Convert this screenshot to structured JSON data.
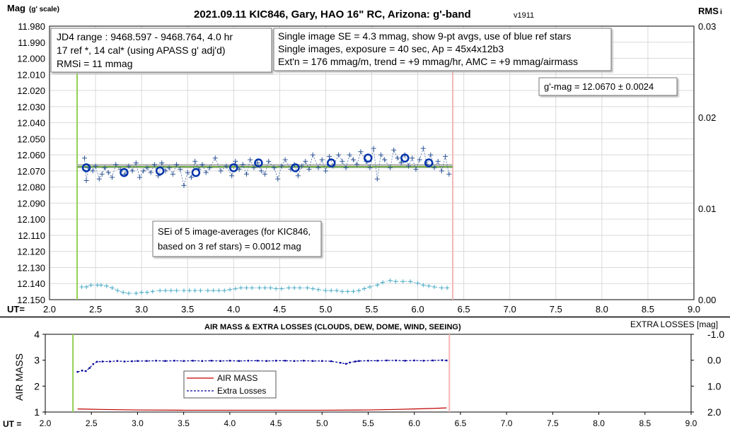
{
  "chart_data": [
    {
      "type": "scatter",
      "title": "2021.09.11 KIC846, Gary, HAO 16\" RC, Arizona: g'-band",
      "version": "v1911",
      "ylabel": "Mag",
      "ylabel_sub": "(g' scale)",
      "y2label": "RMS",
      "y2label_sub": "i",
      "xlabel": "UT=",
      "xlim": [
        2.0,
        9.0
      ],
      "ylim": [
        11.98,
        12.15
      ],
      "y_reversed": true,
      "y2lim": [
        0.0,
        0.03
      ],
      "x_ticks": [
        "2.0",
        "2.5",
        "3.0",
        "3.5",
        "4.0",
        "4.5",
        "5.0",
        "5.5",
        "6.0",
        "6.5",
        "7.0",
        "7.5",
        "8.0",
        "8.5",
        "9.0"
      ],
      "y_ticks": [
        "11.980",
        "11.990",
        "12.000",
        "12.010",
        "12.020",
        "12.030",
        "12.040",
        "12.050",
        "12.060",
        "12.070",
        "12.080",
        "12.090",
        "12.100",
        "12.110",
        "12.120",
        "12.130",
        "12.140",
        "12.150"
      ],
      "y2_ticks": [
        "0.00",
        "0.01",
        "0.02",
        "0.03"
      ],
      "grid": true,
      "vertical_markers": [
        {
          "x": 2.3,
          "color": "#92d050"
        },
        {
          "x": 6.38,
          "color": "#f4b6b6"
        }
      ],
      "colors": {
        "points": "#2f5597",
        "avgs": "#0033aa",
        "mean_line": "#70ad47",
        "band": "#bfbfbf",
        "rms": "#4bacc6"
      },
      "series": [
        {
          "kind": "single",
          "x": [
            2.38,
            2.4,
            2.42,
            2.47,
            2.5,
            2.54,
            2.57,
            2.6,
            2.64,
            2.68,
            2.72,
            2.77,
            2.82,
            2.86,
            2.9,
            2.94,
            2.98,
            3.02,
            3.06,
            3.1,
            3.14,
            3.18,
            3.22,
            3.26,
            3.3,
            3.34,
            3.38,
            3.42,
            3.46,
            3.5,
            3.54,
            3.58,
            3.62,
            3.66,
            3.7,
            3.74,
            3.8,
            3.86,
            3.92,
            3.98,
            4.02,
            4.06,
            4.1,
            4.14,
            4.18,
            4.22,
            4.26,
            4.3,
            4.34,
            4.38,
            4.44,
            4.48,
            4.52,
            4.56,
            4.62,
            4.66,
            4.7,
            4.74,
            4.78,
            4.82,
            4.86,
            4.92,
            4.96,
            5.0,
            5.04,
            5.08,
            5.14,
            5.18,
            5.22,
            5.26,
            5.3,
            5.34,
            5.38,
            5.44,
            5.48,
            5.52,
            5.56,
            5.6,
            5.64,
            5.7,
            5.74,
            5.78,
            5.82,
            5.86,
            5.9,
            5.94,
            5.98,
            6.02,
            6.06,
            6.1,
            6.14,
            6.18,
            6.22,
            6.26,
            6.3,
            6.34
          ],
          "y": [
            12.062,
            12.076,
            12.068,
            12.07,
            12.067,
            12.075,
            12.072,
            12.068,
            12.071,
            12.074,
            12.066,
            12.069,
            12.072,
            12.067,
            12.07,
            12.065,
            12.074,
            12.07,
            12.068,
            12.071,
            12.066,
            12.073,
            12.065,
            12.07,
            12.068,
            12.072,
            12.066,
            12.069,
            12.079,
            12.071,
            12.074,
            12.064,
            12.069,
            12.066,
            12.071,
            12.068,
            12.062,
            12.07,
            12.067,
            12.073,
            12.064,
            12.069,
            12.066,
            12.072,
            12.063,
            12.068,
            12.065,
            12.07,
            12.072,
            12.064,
            12.068,
            12.075,
            12.067,
            12.063,
            12.069,
            12.066,
            12.073,
            12.067,
            12.064,
            12.069,
            12.06,
            12.068,
            12.063,
            12.07,
            12.061,
            12.067,
            12.06,
            12.064,
            12.068,
            12.06,
            12.063,
            12.066,
            12.058,
            12.064,
            12.068,
            12.056,
            12.075,
            12.06,
            12.063,
            12.068,
            12.057,
            12.062,
            12.065,
            12.06,
            12.067,
            12.062,
            12.069,
            12.063,
            12.056,
            12.066,
            12.06,
            12.068,
            12.064,
            12.07,
            12.061,
            12.072
          ]
        },
        {
          "kind": "9-pt avg",
          "x": [
            2.4,
            2.81,
            3.2,
            3.59,
            4.0,
            4.27,
            4.67,
            5.06,
            5.46,
            5.86,
            6.12
          ],
          "y": [
            12.068,
            12.071,
            12.07,
            12.071,
            12.068,
            12.065,
            12.068,
            12.065,
            12.062,
            12.062,
            12.065
          ]
        },
        {
          "kind": "mean",
          "x": [
            2.3,
            6.38
          ],
          "y": [
            12.067,
            12.067
          ]
        },
        {
          "kind": "rms",
          "axis": "y2",
          "x": [
            2.35,
            2.4,
            2.45,
            2.52,
            2.56,
            2.62,
            2.68,
            2.74,
            2.8,
            2.86,
            2.94,
            3.0,
            3.06,
            3.12,
            3.2,
            3.26,
            3.32,
            3.38,
            3.46,
            3.52,
            3.58,
            3.64,
            3.72,
            3.78,
            3.84,
            3.9,
            3.96,
            4.02,
            4.08,
            4.14,
            4.2,
            4.28,
            4.34,
            4.4,
            4.46,
            4.52,
            4.6,
            4.66,
            4.72,
            4.8,
            4.86,
            4.92,
            5.0,
            5.06,
            5.12,
            5.18,
            5.24,
            5.3,
            5.36,
            5.42,
            5.48,
            5.56,
            5.62,
            5.7,
            5.76,
            5.84,
            5.92,
            6.0,
            6.06,
            6.12,
            6.18,
            6.26,
            6.32
          ],
          "y": [
            0.0014,
            0.0014,
            0.0016,
            0.0016,
            0.0016,
            0.0015,
            0.0013,
            0.001,
            0.0008,
            0.0007,
            0.0007,
            0.0008,
            0.0008,
            0.0009,
            0.001,
            0.001,
            0.001,
            0.001,
            0.001,
            0.001,
            0.001,
            0.001,
            0.001,
            0.001,
            0.001,
            0.001,
            0.0011,
            0.0012,
            0.0013,
            0.0013,
            0.0013,
            0.0013,
            0.0013,
            0.0013,
            0.0012,
            0.0012,
            0.0013,
            0.0013,
            0.0013,
            0.0013,
            0.0012,
            0.0011,
            0.001,
            0.001,
            0.001,
            0.0009,
            0.0009,
            0.0009,
            0.001,
            0.0012,
            0.0014,
            0.0016,
            0.0019,
            0.0021,
            0.002,
            0.002,
            0.002,
            0.0018,
            0.0016,
            0.0015,
            0.0014,
            0.0013,
            0.0013
          ]
        }
      ],
      "annotations": [
        {
          "lines": [
            "JD4 range : 9468.597 - 9468.764,  4.0  hr",
            "17 ref *, 14 cal* (using APASS g' adj'd)",
            "RMSi = 11 mmag"
          ]
        },
        {
          "lines": [
            "Single image SE = 4.3 mmag, show  9-pt avgs, use of blue ref stars",
            "Single images, exposure = 40 sec, Ap = 45x4x12b3",
            "Ext'n = 176 mmag/m, trend = +9 mmag/hr, AMC = +9 mmag/airmass"
          ]
        },
        {
          "lines": [
            "g'-mag = 12.0670 ± 0.0024"
          ]
        },
        {
          "lines": [
            "SEi of 5 image-averages (for KIC846,",
            "based on 3 ref stars) = 0.0012 mag"
          ]
        }
      ]
    },
    {
      "type": "line",
      "title": "AIR MASS & EXTRA LOSSES (CLOUDS, DEW, DOME, WIND, SEEING)",
      "ylabel": "AIR MASS",
      "y2label": "EXTRA LOSSES [mag]",
      "xlabel": "UT =",
      "xlim": [
        2.0,
        9.0
      ],
      "ylim": [
        1,
        4
      ],
      "y2lim": [
        2.0,
        -1.0
      ],
      "x_ticks": [
        "2.0",
        "2.5",
        "3.0",
        "3.5",
        "4.0",
        "4.5",
        "5.0",
        "5.5",
        "6.0",
        "6.5",
        "7.0",
        "7.5",
        "8.0",
        "8.5",
        "9.0"
      ],
      "y_ticks": [
        "1",
        "2",
        "3",
        "4"
      ],
      "y2_ticks": [
        "2.0",
        "1.0",
        "0.0",
        "-1.0"
      ],
      "vertical_markers": [
        {
          "x": 2.3,
          "color": "#92d050"
        },
        {
          "x": 6.38,
          "color": "#f4b6b6"
        }
      ],
      "colors": {
        "airmass": "#c00000",
        "losses": "#000099"
      },
      "legend": [
        "AIR MASS",
        "Extra Losses"
      ],
      "series": [
        {
          "name": "AIR MASS",
          "x": [
            2.35,
            2.6,
            3.0,
            3.5,
            4.0,
            4.5,
            5.0,
            5.5,
            5.8,
            6.0,
            6.2,
            6.35
          ],
          "y": [
            1.12,
            1.1,
            1.08,
            1.07,
            1.07,
            1.07,
            1.07,
            1.08,
            1.1,
            1.12,
            1.14,
            1.16
          ]
        },
        {
          "name": "Extra Losses",
          "x": [
            2.35,
            2.4,
            2.44,
            2.48,
            2.52,
            2.56,
            2.62,
            2.7,
            2.78,
            2.86,
            2.94,
            3.0,
            3.1,
            3.2,
            3.3,
            3.4,
            3.5,
            3.6,
            3.7,
            3.8,
            3.9,
            4.0,
            4.1,
            4.2,
            4.3,
            4.4,
            4.5,
            4.6,
            4.7,
            4.8,
            4.9,
            5.0,
            5.1,
            5.2,
            5.26,
            5.3,
            5.36,
            5.4,
            5.5,
            5.6,
            5.7,
            5.8,
            5.9,
            6.0,
            6.1,
            6.2,
            6.3,
            6.35
          ],
          "y": [
            0.45,
            0.4,
            0.42,
            0.3,
            0.15,
            0.06,
            0.05,
            0.05,
            0.03,
            0.05,
            0.04,
            0.03,
            0.03,
            0.02,
            0.03,
            0.02,
            0.03,
            0.02,
            0.03,
            0.02,
            0.03,
            0.02,
            0.03,
            0.02,
            0.02,
            0.03,
            0.02,
            0.02,
            0.03,
            0.02,
            0.03,
            0.03,
            0.04,
            0.1,
            0.14,
            0.09,
            0.05,
            0.03,
            0.02,
            0.02,
            0.01,
            0.01,
            0.02,
            0.01,
            0.02,
            0.01,
            0.0,
            0.01
          ]
        }
      ]
    }
  ]
}
